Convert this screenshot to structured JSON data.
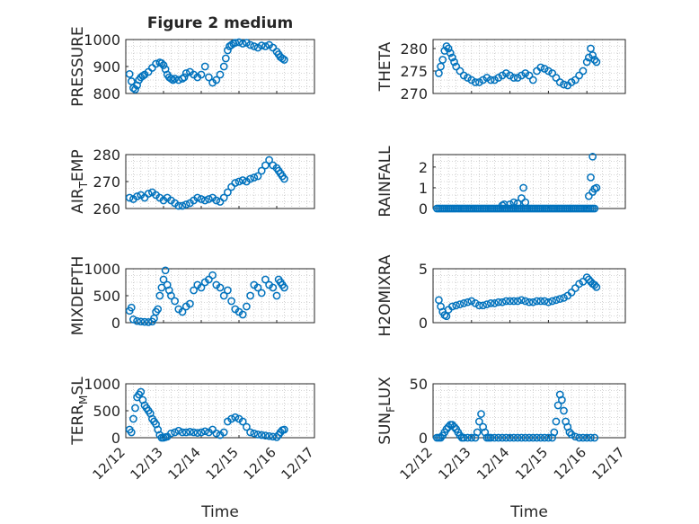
{
  "figure": {
    "title": "Figure 2 medium",
    "xlabel": "Time",
    "xtick_labels": [
      "12/12",
      "12/13",
      "12/14",
      "12/15",
      "12/16",
      "12/17"
    ]
  },
  "chart_data": [
    {
      "type": "scatter",
      "panel": "PRESSURE",
      "ylabel": "PRESSURE",
      "ylabel_main": "PRESSURE",
      "ylabel_sub": "",
      "ylabel_end": "",
      "title": "Figure 2 medium",
      "ylim": [
        800,
        1000
      ],
      "yticks": [
        800,
        900,
        1000
      ],
      "xlim": [
        0,
        5
      ],
      "grid": "minor dotted",
      "marker": "circle",
      "color": "#0072bd",
      "x": [
        0.1,
        0.15,
        0.2,
        0.25,
        0.3,
        0.35,
        0.4,
        0.45,
        0.5,
        0.6,
        0.7,
        0.8,
        0.9,
        0.95,
        1.0,
        1.05,
        1.1,
        1.15,
        1.2,
        1.25,
        1.3,
        1.4,
        1.5,
        1.55,
        1.6,
        1.7,
        1.8,
        1.9,
        2.0,
        2.1,
        2.2,
        2.3,
        2.4,
        2.5,
        2.6,
        2.65,
        2.7,
        2.75,
        2.8,
        2.85,
        2.9,
        3.0,
        3.1,
        3.2,
        3.3,
        3.4,
        3.5,
        3.6,
        3.7,
        3.8,
        3.9,
        4.0,
        4.05,
        4.1,
        4.15,
        4.2
      ],
      "y": [
        872,
        845,
        820,
        815,
        830,
        850,
        860,
        865,
        870,
        880,
        895,
        910,
        915,
        912,
        905,
        890,
        870,
        860,
        855,
        850,
        855,
        850,
        855,
        860,
        875,
        880,
        870,
        860,
        870,
        900,
        860,
        840,
        850,
        870,
        900,
        930,
        960,
        975,
        980,
        985,
        988,
        990,
        985,
        988,
        980,
        975,
        970,
        978,
        975,
        980,
        970,
        955,
        945,
        935,
        930,
        925
      ]
    },
    {
      "type": "scatter",
      "panel": "THETA",
      "ylabel": "THETA",
      "ylabel_main": "THETA",
      "ylabel_sub": "",
      "ylabel_end": "",
      "ylim": [
        270,
        282
      ],
      "yticks": [
        270,
        275,
        280
      ],
      "xlim": [
        0,
        5
      ],
      "grid": "minor dotted",
      "marker": "circle",
      "color": "#0072bd",
      "x": [
        0.15,
        0.2,
        0.25,
        0.3,
        0.35,
        0.4,
        0.45,
        0.5,
        0.55,
        0.6,
        0.7,
        0.8,
        0.9,
        1.0,
        1.1,
        1.2,
        1.3,
        1.4,
        1.5,
        1.6,
        1.7,
        1.8,
        1.9,
        2.0,
        2.1,
        2.2,
        2.3,
        2.4,
        2.5,
        2.6,
        2.7,
        2.8,
        2.9,
        3.0,
        3.1,
        3.2,
        3.3,
        3.4,
        3.5,
        3.6,
        3.7,
        3.8,
        3.9,
        4.0,
        4.05,
        4.1,
        4.15,
        4.2,
        4.25
      ],
      "y": [
        274.5,
        276,
        277.5,
        279.5,
        280.5,
        280,
        279,
        278,
        277,
        276,
        275,
        274,
        273.5,
        273,
        272.5,
        272.5,
        273,
        273.5,
        273,
        273,
        273.5,
        274,
        274.5,
        274,
        273.5,
        273.5,
        274,
        274.5,
        274,
        273,
        275,
        275.8,
        275.5,
        275,
        274.5,
        273.5,
        272.5,
        272,
        271.8,
        272.5,
        273,
        274,
        275,
        277,
        278,
        280,
        278.5,
        277.5,
        277
      ]
    },
    {
      "type": "scatter",
      "panel": "AIR_TEMP",
      "ylabel": "AIR_TEMP",
      "ylabel_main": "AIR",
      "ylabel_sub": "T",
      "ylabel_end": "EMP",
      "ylim": [
        260,
        280
      ],
      "yticks": [
        260,
        270,
        280
      ],
      "xlim": [
        0,
        5
      ],
      "grid": "minor dotted",
      "marker": "circle",
      "color": "#0072bd",
      "x": [
        0.1,
        0.2,
        0.3,
        0.4,
        0.5,
        0.6,
        0.7,
        0.8,
        0.9,
        1.0,
        1.1,
        1.2,
        1.3,
        1.4,
        1.5,
        1.6,
        1.7,
        1.8,
        1.9,
        2.0,
        2.1,
        2.2,
        2.3,
        2.4,
        2.5,
        2.6,
        2.7,
        2.8,
        2.9,
        3.0,
        3.1,
        3.2,
        3.3,
        3.4,
        3.5,
        3.6,
        3.7,
        3.8,
        3.9,
        4.0,
        4.05,
        4.1,
        4.15,
        4.2
      ],
      "y": [
        264,
        263.5,
        264.5,
        265,
        264,
        265.5,
        266,
        265,
        264,
        263,
        264,
        263,
        262,
        261,
        261,
        261.5,
        262,
        263,
        264,
        263.5,
        263,
        263.5,
        264,
        263,
        262.5,
        264,
        266,
        268,
        269.5,
        270,
        270.5,
        270,
        271,
        271.5,
        272,
        274,
        276,
        278,
        276,
        275,
        274,
        273,
        272,
        271
      ]
    },
    {
      "type": "scatter",
      "panel": "RAINFALL",
      "ylabel": "RAINFALL",
      "ylabel_main": "RAINFALL",
      "ylabel_sub": "",
      "ylabel_end": "",
      "ylim": [
        0,
        2.6
      ],
      "yticks": [
        0,
        1,
        2
      ],
      "xlim": [
        0,
        5
      ],
      "grid": "minor dotted",
      "marker": "circle",
      "color": "#0072bd",
      "x": [
        0.1,
        0.15,
        0.2,
        0.25,
        0.3,
        0.35,
        0.4,
        0.45,
        0.5,
        0.55,
        0.6,
        0.65,
        0.7,
        0.75,
        0.8,
        0.85,
        0.9,
        0.95,
        1.0,
        1.05,
        1.1,
        1.15,
        1.2,
        1.25,
        1.3,
        1.35,
        1.4,
        1.45,
        1.5,
        1.55,
        1.6,
        1.65,
        1.7,
        1.75,
        1.8,
        1.85,
        1.9,
        1.95,
        2.0,
        2.05,
        2.1,
        2.15,
        2.2,
        2.25,
        2.3,
        2.35,
        2.4,
        2.45,
        2.5,
        2.55,
        2.6,
        2.65,
        2.7,
        2.75,
        2.8,
        2.85,
        2.9,
        2.95,
        3.0,
        3.05,
        3.1,
        3.15,
        3.2,
        3.25,
        3.3,
        3.35,
        3.4,
        3.45,
        3.5,
        3.55,
        3.6,
        3.65,
        3.7,
        3.75,
        3.8,
        3.85,
        3.9,
        3.95,
        4.0,
        4.05,
        4.1,
        4.15,
        4.2,
        1.8,
        1.85,
        2.0,
        2.1,
        2.2,
        2.3,
        2.35,
        2.4,
        4.05,
        4.1,
        4.15,
        4.15,
        4.2,
        4.25
      ],
      "y": [
        0,
        0,
        0,
        0,
        0,
        0,
        0,
        0,
        0,
        0,
        0,
        0,
        0,
        0,
        0,
        0,
        0,
        0,
        0,
        0,
        0,
        0,
        0,
        0,
        0,
        0,
        0,
        0,
        0,
        0,
        0,
        0,
        0,
        0,
        0,
        0,
        0,
        0,
        0,
        0,
        0,
        0,
        0,
        0,
        0,
        0,
        0,
        0,
        0,
        0,
        0,
        0,
        0,
        0,
        0,
        0,
        0,
        0,
        0,
        0,
        0,
        0,
        0,
        0,
        0,
        0,
        0,
        0,
        0,
        0,
        0,
        0,
        0,
        0,
        0,
        0,
        0,
        0,
        0,
        0,
        0,
        0,
        0,
        0.15,
        0.2,
        0.2,
        0.3,
        0.25,
        0.5,
        1.0,
        0.3,
        0.6,
        1.5,
        2.5,
        0.8,
        0.95,
        1.0
      ]
    },
    {
      "type": "scatter",
      "panel": "MIXDEPTH",
      "ylabel": "MIXDEPTH",
      "ylabel_main": "MIXDEPTH",
      "ylabel_sub": "",
      "ylabel_end": "",
      "ylim": [
        0,
        1000
      ],
      "yticks": [
        0,
        500,
        1000
      ],
      "xlim": [
        0,
        5
      ],
      "grid": "minor dotted",
      "marker": "circle",
      "color": "#0072bd",
      "x": [
        0.1,
        0.15,
        0.2,
        0.3,
        0.4,
        0.5,
        0.6,
        0.7,
        0.75,
        0.8,
        0.85,
        0.9,
        0.95,
        1.0,
        1.05,
        1.1,
        1.15,
        1.2,
        1.3,
        1.4,
        1.5,
        1.6,
        1.7,
        1.8,
        1.9,
        2.0,
        2.1,
        2.2,
        2.3,
        2.4,
        2.5,
        2.6,
        2.7,
        2.8,
        2.9,
        3.0,
        3.1,
        3.2,
        3.3,
        3.4,
        3.5,
        3.6,
        3.7,
        3.8,
        3.9,
        4.0,
        4.05,
        4.1,
        4.15,
        4.2
      ],
      "y": [
        220,
        280,
        60,
        30,
        20,
        15,
        10,
        20,
        80,
        200,
        250,
        500,
        650,
        800,
        970,
        700,
        600,
        500,
        400,
        250,
        200,
        300,
        350,
        600,
        700,
        650,
        750,
        800,
        880,
        700,
        650,
        500,
        600,
        400,
        250,
        200,
        150,
        300,
        500,
        700,
        650,
        550,
        800,
        700,
        650,
        500,
        800,
        750,
        700,
        650
      ]
    },
    {
      "type": "scatter",
      "panel": "H2OMIXRA",
      "ylabel": "H2OMIXRA",
      "ylabel_main": "H2OMIXRA",
      "ylabel_sub": "",
      "ylabel_end": "",
      "ylim": [
        0,
        5
      ],
      "yticks": [
        0,
        5
      ],
      "xlim": [
        0,
        5
      ],
      "grid": "minor dotted",
      "marker": "circle",
      "color": "#0072bd",
      "x": [
        0.15,
        0.2,
        0.25,
        0.3,
        0.35,
        0.4,
        0.5,
        0.6,
        0.7,
        0.8,
        0.9,
        1.0,
        1.1,
        1.2,
        1.3,
        1.4,
        1.5,
        1.6,
        1.7,
        1.8,
        1.9,
        2.0,
        2.1,
        2.2,
        2.3,
        2.4,
        2.5,
        2.6,
        2.7,
        2.8,
        2.9,
        3.0,
        3.1,
        3.2,
        3.3,
        3.4,
        3.5,
        3.6,
        3.7,
        3.8,
        3.9,
        4.0,
        4.05,
        4.1,
        4.15,
        4.2,
        4.25
      ],
      "y": [
        2.1,
        1.5,
        1.0,
        0.7,
        0.6,
        1.2,
        1.5,
        1.6,
        1.7,
        1.8,
        1.9,
        2.0,
        1.8,
        1.6,
        1.6,
        1.7,
        1.8,
        1.8,
        1.9,
        1.9,
        2.0,
        2.0,
        2.0,
        2.0,
        2.1,
        2.0,
        1.9,
        1.9,
        2.0,
        2.0,
        2.0,
        1.9,
        2.0,
        2.1,
        2.2,
        2.3,
        2.5,
        2.8,
        3.2,
        3.6,
        3.8,
        4.2,
        4.0,
        3.8,
        3.6,
        3.5,
        3.3
      ]
    },
    {
      "type": "scatter",
      "panel": "TERR_MSL",
      "ylabel": "TERR_MSL",
      "ylabel_main": "TERR",
      "ylabel_sub": "M",
      "ylabel_end": "SL",
      "ylim": [
        0,
        1000
      ],
      "yticks": [
        0,
        500,
        1000
      ],
      "xlim": [
        0,
        5
      ],
      "grid": "minor dotted",
      "marker": "circle",
      "color": "#0072bd",
      "x": [
        0.1,
        0.15,
        0.2,
        0.25,
        0.3,
        0.35,
        0.4,
        0.45,
        0.5,
        0.55,
        0.6,
        0.65,
        0.7,
        0.75,
        0.8,
        0.85,
        0.9,
        0.95,
        1.0,
        1.05,
        1.1,
        1.2,
        1.3,
        1.4,
        1.5,
        1.6,
        1.7,
        1.8,
        1.9,
        2.0,
        2.1,
        2.2,
        2.3,
        2.4,
        2.5,
        2.6,
        2.7,
        2.8,
        2.9,
        3.0,
        3.1,
        3.2,
        3.3,
        3.4,
        3.5,
        3.6,
        3.7,
        3.8,
        3.9,
        4.0,
        4.05,
        4.1,
        4.15,
        4.2
      ],
      "y": [
        150,
        100,
        350,
        550,
        750,
        800,
        850,
        700,
        600,
        550,
        500,
        450,
        350,
        300,
        250,
        150,
        50,
        0,
        0,
        10,
        20,
        80,
        100,
        130,
        100,
        100,
        110,
        100,
        90,
        100,
        120,
        100,
        150,
        80,
        50,
        100,
        300,
        350,
        380,
        350,
        300,
        200,
        100,
        80,
        60,
        50,
        40,
        30,
        20,
        10,
        50,
        100,
        140,
        150
      ]
    },
    {
      "type": "scatter",
      "panel": "SUN_FLUX",
      "ylabel": "SUN_FLUX",
      "ylabel_main": "SUN",
      "ylabel_sub": "F",
      "ylabel_end": "LUX",
      "ylim": [
        0,
        50
      ],
      "yticks": [
        0,
        50
      ],
      "xlim": [
        0,
        5
      ],
      "grid": "minor dotted",
      "marker": "circle",
      "color": "#0072bd",
      "x": [
        0.1,
        0.15,
        0.2,
        0.25,
        0.3,
        0.35,
        0.4,
        0.45,
        0.5,
        0.55,
        0.6,
        0.65,
        0.7,
        0.75,
        0.8,
        0.9,
        1.0,
        1.1,
        1.15,
        1.2,
        1.25,
        1.3,
        1.35,
        1.4,
        1.45,
        1.5,
        1.6,
        1.7,
        1.8,
        1.9,
        2.0,
        2.1,
        2.2,
        2.3,
        2.4,
        2.5,
        2.6,
        2.7,
        2.8,
        2.9,
        3.0,
        3.1,
        3.15,
        3.2,
        3.25,
        3.3,
        3.35,
        3.4,
        3.45,
        3.5,
        3.55,
        3.6,
        3.7,
        3.8,
        3.9,
        4.0,
        4.1,
        4.2
      ],
      "y": [
        0,
        0,
        0,
        2,
        5,
        8,
        10,
        12,
        12,
        10,
        8,
        5,
        2,
        0,
        0,
        0,
        0,
        0,
        5,
        15,
        22,
        10,
        5,
        0,
        0,
        0,
        0,
        0,
        0,
        0,
        0,
        0,
        0,
        0,
        0,
        0,
        0,
        0,
        0,
        0,
        0,
        0,
        5,
        15,
        30,
        40,
        35,
        25,
        15,
        10,
        5,
        3,
        1,
        0,
        0,
        0,
        0,
        0
      ]
    }
  ]
}
